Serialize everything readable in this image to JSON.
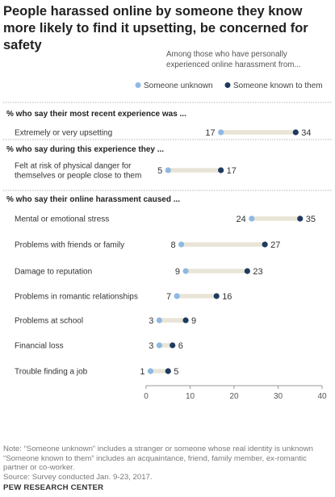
{
  "header": {
    "title": "People harassed online by someone they know more likely to find it upsetting, be concerned for safety"
  },
  "chart_data": {
    "type": "dot",
    "subtitle": [
      "Among those who have personally",
      "experienced online harassment from..."
    ],
    "legend": [
      {
        "label": "Someone unknown",
        "color": "#8fb8e3"
      },
      {
        "label": "Someone known to them",
        "color": "#1f3a5f"
      }
    ],
    "xlim": [
      0,
      40
    ],
    "xticks": [
      0,
      10,
      20,
      30,
      40
    ],
    "sections": [
      {
        "header": "% who say their most recent experience was ...",
        "rows": [
          {
            "label": [
              "Extremely or very upsetting"
            ],
            "unknown": 17,
            "known": 34
          }
        ]
      },
      {
        "header": "% who say during this experience they ...",
        "rows": [
          {
            "label": [
              "Felt at risk of physical danger for",
              "themselves or people close to them"
            ],
            "unknown": 5,
            "known": 17
          }
        ]
      },
      {
        "header": "% who say their online harassment caused ...",
        "rows": [
          {
            "label": [
              "Mental or emotional stress"
            ],
            "unknown": 24,
            "known": 35
          },
          {
            "label": [
              "Problems with friends or family"
            ],
            "unknown": 8,
            "known": 27
          },
          {
            "label": [
              "Damage to reputation"
            ],
            "unknown": 9,
            "known": 23
          },
          {
            "label": [
              "Problems in romantic relationships"
            ],
            "unknown": 7,
            "known": 16
          },
          {
            "label": [
              "Problems at school"
            ],
            "unknown": 3,
            "known": 9
          },
          {
            "label": [
              "Financial loss"
            ],
            "unknown": 3,
            "known": 6
          },
          {
            "label": [
              "Trouble finding a job"
            ],
            "unknown": 1,
            "known": 5
          }
        ]
      }
    ],
    "colors": {
      "unknown": "#8fb8e3",
      "known": "#1f3a5f",
      "bar": "#e8e5d7",
      "divider": "#b5b5b5"
    }
  },
  "notes": [
    "Note: “Someone unknown” includes a stranger or someone whose real identity is unknown",
    "“Someone known to them” includes an acquaintance, friend, family member, ex-romantic",
    "partner or co-worker.",
    "Source: Survey conducted Jan. 9-23, 2017."
  ],
  "brand": "PEW RESEARCH CENTER"
}
